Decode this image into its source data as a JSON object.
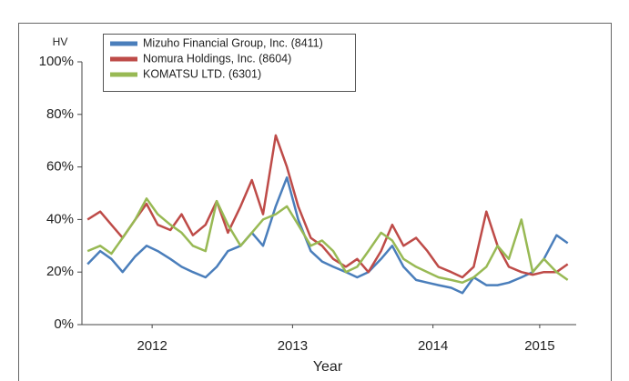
{
  "chart_data": {
    "type": "line",
    "y_label": "HV",
    "x_label": "Year",
    "x": [
      2012.04,
      2012.13,
      2012.21,
      2012.29,
      2012.38,
      2012.46,
      2012.54,
      2012.63,
      2012.71,
      2012.79,
      2012.88,
      2012.96,
      2013.04,
      2013.13,
      2013.21,
      2013.29,
      2013.38,
      2013.46,
      2013.54,
      2013.63,
      2013.71,
      2013.79,
      2013.88,
      2013.96,
      2014.04,
      2014.13,
      2014.21,
      2014.29,
      2014.38,
      2014.46,
      2014.54,
      2014.63,
      2014.71,
      2014.79,
      2014.88,
      2014.96,
      2015.04,
      2015.13,
      2015.21,
      2015.29,
      2015.38,
      2015.46
    ],
    "series": [
      {
        "name": "Mizuho Financial Group, Inc. (8411)",
        "color": "#4a7ebb",
        "values": [
          23,
          28,
          25,
          20,
          26,
          30,
          28,
          25,
          22,
          20,
          18,
          22,
          28,
          30,
          35,
          30,
          45,
          56,
          40,
          28,
          24,
          22,
          20,
          18,
          20,
          25,
          30,
          22,
          17,
          16,
          15,
          14,
          12,
          18,
          15,
          15,
          16,
          18,
          20,
          25,
          34,
          31
        ]
      },
      {
        "name": "Nomura Holdings, Inc. (8604)",
        "color": "#be4b48",
        "values": [
          40,
          43,
          38,
          33,
          40,
          46,
          38,
          36,
          42,
          34,
          38,
          47,
          35,
          45,
          55,
          42,
          72,
          60,
          45,
          33,
          30,
          25,
          22,
          25,
          20,
          28,
          38,
          30,
          33,
          28,
          22,
          20,
          18,
          22,
          43,
          30,
          22,
          20,
          19,
          20,
          20,
          23
        ]
      },
      {
        "name": "KOMATSU LTD. (6301)",
        "color": "#98b954",
        "values": [
          28,
          30,
          27,
          33,
          40,
          48,
          42,
          38,
          35,
          30,
          28,
          47,
          38,
          30,
          35,
          40,
          42,
          45,
          38,
          30,
          32,
          28,
          20,
          22,
          28,
          35,
          32,
          25,
          22,
          20,
          18,
          17,
          16,
          18,
          22,
          30,
          25,
          40,
          20,
          25,
          20,
          17
        ]
      }
    ],
    "xlim": [
      2012,
      2015.52
    ],
    "xticks": [
      {
        "value": 2012.5,
        "label": "2012"
      },
      {
        "value": 2013.5,
        "label": "2013"
      },
      {
        "value": 2014.5,
        "label": "2014"
      },
      {
        "value": 2015.26,
        "label": "2015"
      }
    ],
    "ylim": [
      0,
      100
    ],
    "yticks": [
      {
        "value": 0,
        "label": "0%"
      },
      {
        "value": 20,
        "label": "20%"
      },
      {
        "value": 40,
        "label": "40%"
      },
      {
        "value": 60,
        "label": "60%"
      },
      {
        "value": 80,
        "label": "80%"
      },
      {
        "value": 100,
        "label": "100%"
      }
    ],
    "legend": "upper left"
  }
}
